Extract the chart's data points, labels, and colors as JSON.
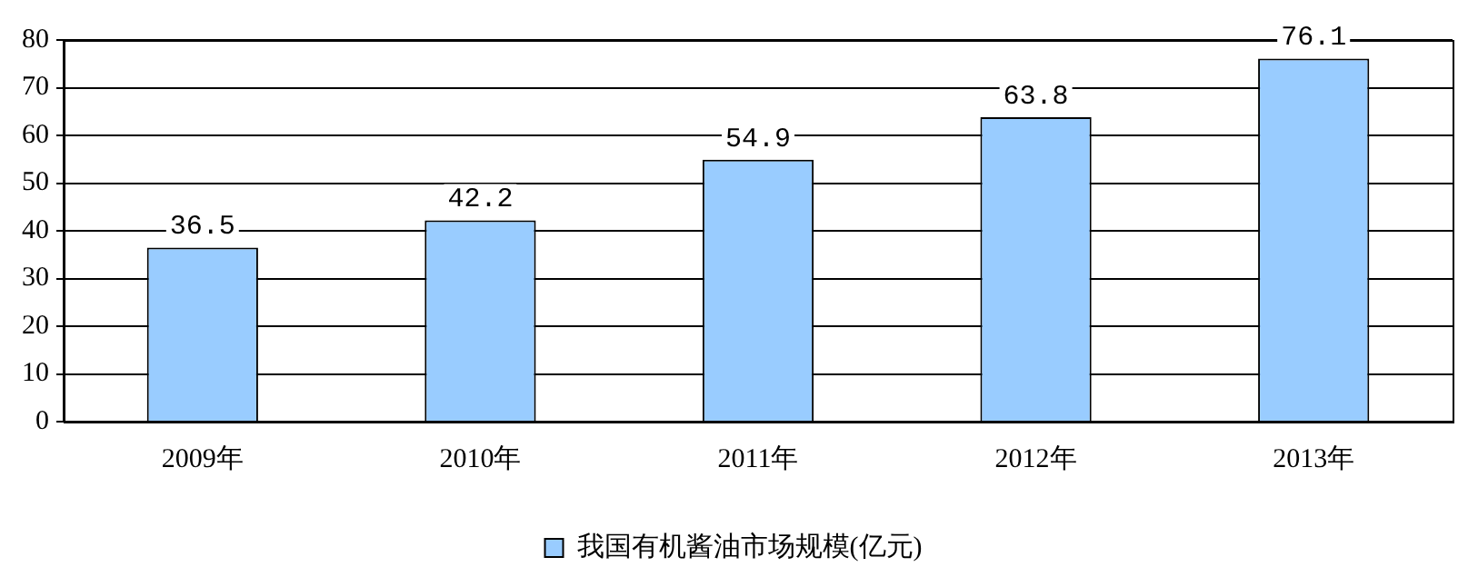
{
  "chart_data": {
    "type": "bar",
    "categories": [
      "2009年",
      "2010年",
      "2011年",
      "2012年",
      "2013年"
    ],
    "series": [
      {
        "name": "我国有机酱油市场规模(亿元)",
        "color": "#99ccff",
        "values": [
          36.5,
          42.2,
          54.9,
          63.8,
          76.1
        ]
      }
    ],
    "ylim": [
      0,
      80
    ],
    "yticks": [
      0,
      10,
      20,
      30,
      40,
      50,
      60,
      70,
      80
    ],
    "grid": "y",
    "legend": "bottom",
    "data_labels": true
  }
}
